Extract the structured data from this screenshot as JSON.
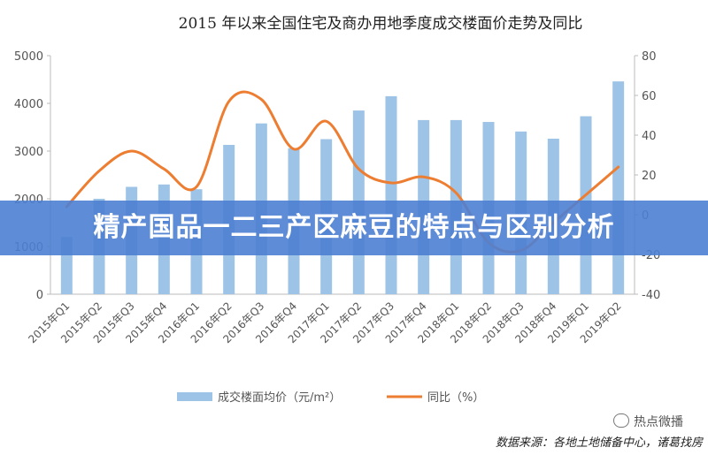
{
  "chart_data": {
    "type": "bar",
    "title": "2015 年以来全国住宅及商办用地季度成交楼面价走势及同比",
    "categories": [
      "2015年Q1",
      "2015年Q2",
      "2015年Q3",
      "2015年Q4",
      "2016年Q1",
      "2016年Q2",
      "2016年Q3",
      "2016年Q4",
      "2017年Q1",
      "2017年Q2",
      "2017年Q3",
      "2017年Q4",
      "2018年Q1",
      "2018年Q2",
      "2018年Q3",
      "2018年Q4",
      "2019年Q1",
      "2019年Q2"
    ],
    "series": [
      {
        "name": "成交楼面均价（元/m²）",
        "type": "bar",
        "axis": "left",
        "color": "#9dc3e6",
        "values": [
          1200,
          2000,
          2250,
          2300,
          2200,
          3130,
          3580,
          3060,
          3250,
          3850,
          4150,
          3650,
          3650,
          3610,
          3410,
          3260,
          3730,
          4460
        ]
      },
      {
        "name": "同比（%）",
        "type": "line",
        "axis": "right",
        "color": "#ed7d31",
        "values": [
          4,
          22,
          32,
          23,
          14,
          57,
          58,
          33,
          47,
          23,
          16,
          19,
          11,
          -14,
          -18,
          -4,
          10,
          24
        ]
      }
    ],
    "y_left": {
      "min": 0,
      "max": 5000,
      "ticks": [
        0,
        1000,
        2000,
        3000,
        4000,
        5000
      ]
    },
    "y_right": {
      "min": -40,
      "max": 80,
      "ticks": [
        -40,
        -20,
        0,
        20,
        40,
        60,
        80
      ]
    },
    "legend_position": "bottom",
    "grid": false
  },
  "overlay": {
    "banner_title": "精产国品一二三产区麻豆的特点与区别分析",
    "watermark": "热点微播",
    "source_note": "数据来源：各地土地储备中心，诸葛找房"
  }
}
